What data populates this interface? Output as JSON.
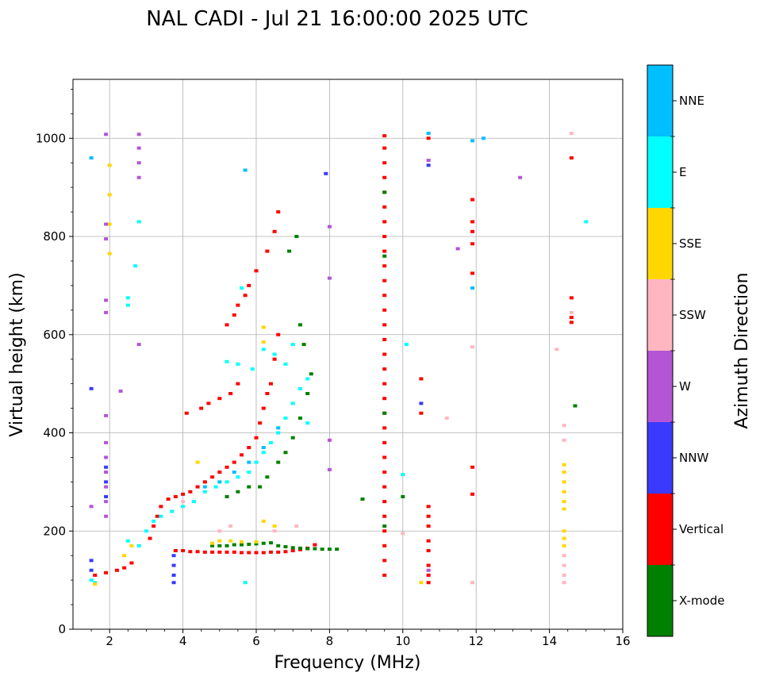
{
  "chart_data": {
    "type": "scatter",
    "title": "NAL CADI - Jul 21 16:00:00 2025 UTC",
    "xlabel": "Frequency (MHz)",
    "ylabel": "Virtual height (km)",
    "xlim": [
      1,
      16
    ],
    "ylim": [
      0,
      1120
    ],
    "xticks": [
      2,
      4,
      6,
      8,
      10,
      12,
      14,
      16
    ],
    "yticks": [
      0,
      200,
      400,
      600,
      800,
      1000
    ],
    "grid": true,
    "colorbar": {
      "title": "Azimuth Direction",
      "categories": [
        {
          "name": "X-mode",
          "color": "#008000"
        },
        {
          "name": "Vertical",
          "color": "#ff0000"
        },
        {
          "name": "NNW",
          "color": "#3a3aff"
        },
        {
          "name": "W",
          "color": "#b455d6"
        },
        {
          "name": "SSW",
          "color": "#ffb6c1"
        },
        {
          "name": "SSE",
          "color": "#ffd700"
        },
        {
          "name": "E",
          "color": "#00ffff"
        },
        {
          "name": "NNE",
          "color": "#00bfff"
        }
      ]
    },
    "series": [
      {
        "name": "Vertical",
        "color": "#ff0000",
        "points": [
          [
            3.8,
            160
          ],
          [
            4.0,
            160
          ],
          [
            4.2,
            158
          ],
          [
            4.4,
            158
          ],
          [
            4.6,
            157
          ],
          [
            4.8,
            157
          ],
          [
            5.0,
            157
          ],
          [
            5.2,
            157
          ],
          [
            5.4,
            157
          ],
          [
            5.6,
            156
          ],
          [
            5.8,
            156
          ],
          [
            6.0,
            156
          ],
          [
            6.2,
            156
          ],
          [
            6.4,
            157
          ],
          [
            6.6,
            157
          ],
          [
            6.8,
            158
          ],
          [
            7.0,
            160
          ],
          [
            7.2,
            162
          ],
          [
            7.4,
            165
          ],
          [
            7.6,
            172
          ],
          [
            3.1,
            185
          ],
          [
            3.2,
            210
          ],
          [
            3.3,
            230
          ],
          [
            3.4,
            250
          ],
          [
            3.6,
            265
          ],
          [
            3.8,
            270
          ],
          [
            4.0,
            275
          ],
          [
            4.2,
            280
          ],
          [
            4.4,
            290
          ],
          [
            4.6,
            300
          ],
          [
            4.8,
            310
          ],
          [
            5.0,
            320
          ],
          [
            5.2,
            330
          ],
          [
            5.4,
            340
          ],
          [
            5.6,
            355
          ],
          [
            5.8,
            370
          ],
          [
            6.0,
            390
          ],
          [
            6.1,
            420
          ],
          [
            6.2,
            450
          ],
          [
            6.3,
            480
          ],
          [
            6.4,
            500
          ],
          [
            6.5,
            550
          ],
          [
            6.6,
            600
          ],
          [
            4.1,
            440
          ],
          [
            4.5,
            450
          ],
          [
            4.7,
            460
          ],
          [
            5.0,
            470
          ],
          [
            5.3,
            480
          ],
          [
            5.5,
            500
          ],
          [
            5.2,
            620
          ],
          [
            5.4,
            640
          ],
          [
            5.5,
            660
          ],
          [
            5.7,
            680
          ],
          [
            5.8,
            700
          ],
          [
            6.0,
            730
          ],
          [
            6.3,
            770
          ],
          [
            6.5,
            810
          ],
          [
            6.6,
            850
          ],
          [
            9.5,
            1005
          ],
          [
            9.5,
            980
          ],
          [
            9.5,
            950
          ],
          [
            9.5,
            920
          ],
          [
            9.5,
            890
          ],
          [
            9.5,
            860
          ],
          [
            9.5,
            830
          ],
          [
            9.5,
            800
          ],
          [
            9.5,
            770
          ],
          [
            9.5,
            740
          ],
          [
            9.5,
            710
          ],
          [
            9.5,
            680
          ],
          [
            9.5,
            650
          ],
          [
            9.5,
            620
          ],
          [
            9.5,
            590
          ],
          [
            9.5,
            560
          ],
          [
            9.5,
            530
          ],
          [
            9.5,
            500
          ],
          [
            9.5,
            470
          ],
          [
            9.5,
            440
          ],
          [
            9.5,
            410
          ],
          [
            9.5,
            380
          ],
          [
            9.5,
            350
          ],
          [
            9.5,
            320
          ],
          [
            9.5,
            290
          ],
          [
            9.5,
            260
          ],
          [
            9.5,
            230
          ],
          [
            9.5,
            200
          ],
          [
            9.5,
            170
          ],
          [
            9.5,
            140
          ],
          [
            9.5,
            110
          ],
          [
            10.7,
            250
          ],
          [
            10.7,
            230
          ],
          [
            10.7,
            210
          ],
          [
            10.7,
            180
          ],
          [
            10.7,
            160
          ],
          [
            10.7,
            130
          ],
          [
            10.7,
            110
          ],
          [
            10.7,
            95
          ],
          [
            10.5,
            510
          ],
          [
            10.5,
            440
          ],
          [
            11.9,
            875
          ],
          [
            11.9,
            830
          ],
          [
            11.9,
            810
          ],
          [
            11.9,
            785
          ],
          [
            11.9,
            725
          ],
          [
            11.9,
            330
          ],
          [
            11.9,
            275
          ],
          [
            14.6,
            960
          ],
          [
            14.6,
            675
          ],
          [
            14.6,
            635
          ],
          [
            14.6,
            625
          ],
          [
            10.7,
            1000
          ],
          [
            1.6,
            110
          ],
          [
            1.9,
            115
          ],
          [
            2.2,
            120
          ],
          [
            2.4,
            125
          ],
          [
            2.6,
            135
          ]
        ]
      },
      {
        "name": "X-mode",
        "color": "#008000",
        "points": [
          [
            4.8,
            170
          ],
          [
            5.0,
            170
          ],
          [
            5.2,
            170
          ],
          [
            5.4,
            172
          ],
          [
            5.6,
            172
          ],
          [
            5.8,
            173
          ],
          [
            6.0,
            174
          ],
          [
            6.2,
            175
          ],
          [
            6.4,
            176
          ],
          [
            6.6,
            170
          ],
          [
            6.8,
            168
          ],
          [
            7.0,
            166
          ],
          [
            7.2,
            165
          ],
          [
            7.4,
            164
          ],
          [
            7.6,
            164
          ],
          [
            7.8,
            163
          ],
          [
            8.0,
            163
          ],
          [
            8.2,
            163
          ],
          [
            5.2,
            270
          ],
          [
            5.5,
            280
          ],
          [
            5.8,
            290
          ],
          [
            6.1,
            290
          ],
          [
            6.3,
            310
          ],
          [
            6.6,
            340
          ],
          [
            6.8,
            360
          ],
          [
            7.0,
            390
          ],
          [
            7.2,
            430
          ],
          [
            7.4,
            480
          ],
          [
            7.5,
            520
          ],
          [
            7.3,
            580
          ],
          [
            7.2,
            620
          ],
          [
            6.9,
            770
          ],
          [
            7.1,
            800
          ],
          [
            8.9,
            265
          ],
          [
            9.5,
            210
          ],
          [
            9.5,
            440
          ],
          [
            9.5,
            760
          ],
          [
            9.5,
            890
          ],
          [
            10.0,
            270
          ],
          [
            14.7,
            455
          ]
        ]
      },
      {
        "name": "E",
        "color": "#00ffff",
        "points": [
          [
            1.5,
            100
          ],
          [
            1.6,
            95
          ],
          [
            2.5,
            180
          ],
          [
            2.8,
            170
          ],
          [
            3.0,
            200
          ],
          [
            3.2,
            220
          ],
          [
            3.4,
            230
          ],
          [
            3.7,
            240
          ],
          [
            4.0,
            250
          ],
          [
            4.3,
            260
          ],
          [
            4.6,
            280
          ],
          [
            4.9,
            290
          ],
          [
            5.2,
            300
          ],
          [
            5.5,
            310
          ],
          [
            5.8,
            320
          ],
          [
            6.0,
            340
          ],
          [
            6.2,
            360
          ],
          [
            6.4,
            380
          ],
          [
            6.6,
            400
          ],
          [
            6.8,
            430
          ],
          [
            7.0,
            460
          ],
          [
            7.2,
            490
          ],
          [
            7.4,
            510
          ],
          [
            6.2,
            570
          ],
          [
            6.5,
            560
          ],
          [
            6.8,
            540
          ],
          [
            7.0,
            580
          ],
          [
            5.2,
            545
          ],
          [
            5.5,
            540
          ],
          [
            5.9,
            530
          ],
          [
            5.6,
            695
          ],
          [
            7.4,
            420
          ],
          [
            2.5,
            660
          ],
          [
            2.5,
            675
          ],
          [
            10.1,
            580
          ],
          [
            15.0,
            830
          ],
          [
            10.0,
            315
          ],
          [
            5.7,
            95
          ],
          [
            2.8,
            830
          ],
          [
            2.7,
            740
          ]
        ]
      },
      {
        "name": "NNE",
        "color": "#00bfff",
        "points": [
          [
            4.6,
            290
          ],
          [
            5.0,
            300
          ],
          [
            5.4,
            320
          ],
          [
            5.8,
            340
          ],
          [
            6.2,
            370
          ],
          [
            6.6,
            410
          ],
          [
            10.7,
            1010
          ],
          [
            12.2,
            1000
          ],
          [
            11.9,
            995
          ],
          [
            11.9,
            695
          ],
          [
            1.5,
            960
          ],
          [
            5.7,
            935
          ]
        ]
      },
      {
        "name": "SSE",
        "color": "#ffd700",
        "points": [
          [
            1.6,
            92
          ],
          [
            2.4,
            150
          ],
          [
            2.6,
            170
          ],
          [
            4.4,
            340
          ],
          [
            4.8,
            175
          ],
          [
            5.0,
            180
          ],
          [
            5.3,
            180
          ],
          [
            5.6,
            178
          ],
          [
            6.0,
            178
          ],
          [
            6.2,
            220
          ],
          [
            6.5,
            210
          ],
          [
            6.2,
            585
          ],
          [
            6.2,
            615
          ],
          [
            2.0,
            945
          ],
          [
            2.0,
            885
          ],
          [
            2.0,
            825
          ],
          [
            2.0,
            765
          ],
          [
            14.4,
            335
          ],
          [
            14.4,
            320
          ],
          [
            14.4,
            300
          ],
          [
            14.4,
            280
          ],
          [
            14.4,
            260
          ],
          [
            14.4,
            245
          ],
          [
            14.4,
            200
          ],
          [
            14.4,
            185
          ],
          [
            14.4,
            170
          ],
          [
            10.5,
            95
          ]
        ]
      },
      {
        "name": "SSW",
        "color": "#ffb6c1",
        "points": [
          [
            5.0,
            200
          ],
          [
            5.3,
            210
          ],
          [
            6.5,
            200
          ],
          [
            7.1,
            210
          ],
          [
            10.0,
            195
          ],
          [
            11.2,
            430
          ],
          [
            11.9,
            575
          ],
          [
            11.9,
            95
          ],
          [
            14.2,
            570
          ],
          [
            14.4,
            415
          ],
          [
            14.4,
            385
          ],
          [
            14.4,
            150
          ],
          [
            14.4,
            130
          ],
          [
            14.4,
            110
          ],
          [
            14.4,
            95
          ],
          [
            14.6,
            1010
          ],
          [
            14.6,
            645
          ],
          [
            4.0,
            260
          ]
        ]
      },
      {
        "name": "W",
        "color": "#b455d6",
        "points": [
          [
            1.9,
            1008
          ],
          [
            2.8,
            1008
          ],
          [
            2.8,
            980
          ],
          [
            2.8,
            950
          ],
          [
            2.8,
            920
          ],
          [
            1.9,
            825
          ],
          [
            1.9,
            795
          ],
          [
            1.9,
            670
          ],
          [
            1.9,
            645
          ],
          [
            1.9,
            435
          ],
          [
            1.9,
            380
          ],
          [
            1.9,
            350
          ],
          [
            1.9,
            320
          ],
          [
            1.9,
            290
          ],
          [
            1.9,
            260
          ],
          [
            1.9,
            230
          ],
          [
            1.5,
            250
          ],
          [
            2.3,
            485
          ],
          [
            2.8,
            580
          ],
          [
            8.0,
            820
          ],
          [
            8.0,
            715
          ],
          [
            8.0,
            385
          ],
          [
            8.0,
            325
          ],
          [
            11.5,
            775
          ],
          [
            13.2,
            920
          ],
          [
            10.7,
            955
          ],
          [
            10.7,
            120
          ]
        ]
      },
      {
        "name": "NNW",
        "color": "#3a3aff",
        "points": [
          [
            1.5,
            490
          ],
          [
            1.5,
            140
          ],
          [
            1.5,
            120
          ],
          [
            1.9,
            330
          ],
          [
            1.9,
            300
          ],
          [
            1.9,
            270
          ],
          [
            3.75,
            150
          ],
          [
            3.75,
            130
          ],
          [
            3.75,
            110
          ],
          [
            3.75,
            95
          ],
          [
            7.9,
            928
          ],
          [
            10.5,
            460
          ],
          [
            10.7,
            945
          ]
        ]
      }
    ]
  }
}
